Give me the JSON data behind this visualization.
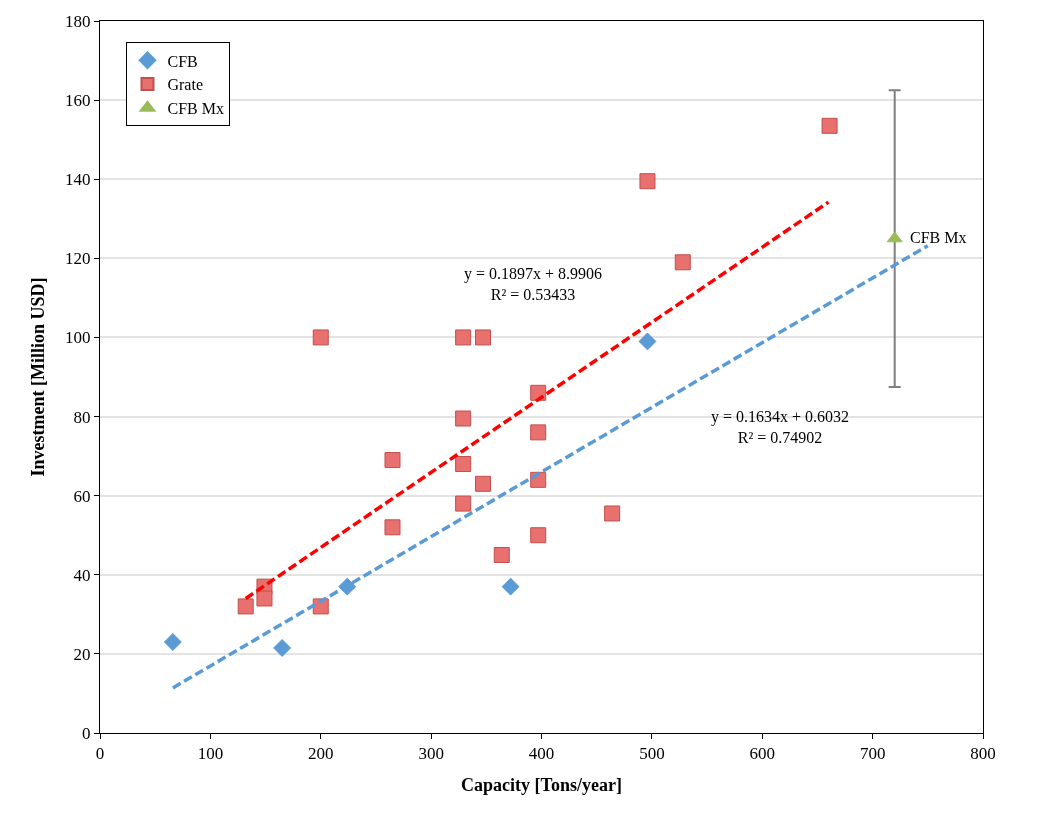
{
  "chart_data": {
    "type": "scatter",
    "xlabel": "Capacity [Tons/year]",
    "ylabel": "Investment [Million USD]",
    "xlim": [
      0,
      800
    ],
    "xticks": [
      0,
      100,
      200,
      300,
      400,
      500,
      600,
      700,
      800
    ],
    "ylim": [
      0,
      180
    ],
    "yticks": [
      0,
      20,
      40,
      60,
      80,
      100,
      120,
      140,
      160,
      180
    ],
    "grid": "y",
    "legend": "top left",
    "series": [
      {
        "name": "CFB",
        "color": "#5b9bd5",
        "marker": "diamond",
        "x": [
          66,
          165,
          224,
          372,
          496
        ],
        "values": [
          23,
          21.5,
          37,
          37,
          99
        ]
      },
      {
        "name": "Grate",
        "color": "#e8706e",
        "marker": "square",
        "x": [
          132,
          149,
          149,
          200,
          200,
          265,
          265,
          329,
          347,
          329,
          329,
          329,
          347,
          364,
          397,
          397,
          397,
          397,
          464,
          496,
          528,
          661
        ],
        "values": [
          32,
          37,
          34,
          32,
          100,
          69,
          52,
          100,
          100,
          79.5,
          68,
          58,
          63,
          45,
          86,
          76,
          64,
          50,
          55.5,
          139.5,
          119,
          153.5
        ]
      },
      {
        "name": "CFB Mx",
        "color": "#9bbb59",
        "marker": "triangle",
        "x": [
          720
        ],
        "values": [
          125
        ],
        "errors": [
          37.5
        ]
      },
      {
        "type": "line",
        "color": "#ff0000",
        "line_style": "dashed",
        "marker": "none",
        "x": [
          132,
          660
        ],
        "values": [
          34,
          134.2
        ]
      },
      {
        "type": "line",
        "color": "#5b9bd5",
        "line_style": "dashed",
        "marker": "none",
        "x": [
          66,
          750
        ],
        "values": [
          11.4,
          123.2
        ]
      }
    ],
    "annotations": [
      "y = 0.1897x + 8.9906\nR² = 0.53433",
      "y = 0.1634x + 0.6032\nR² = 0.74902",
      "CFB Mx"
    ]
  }
}
